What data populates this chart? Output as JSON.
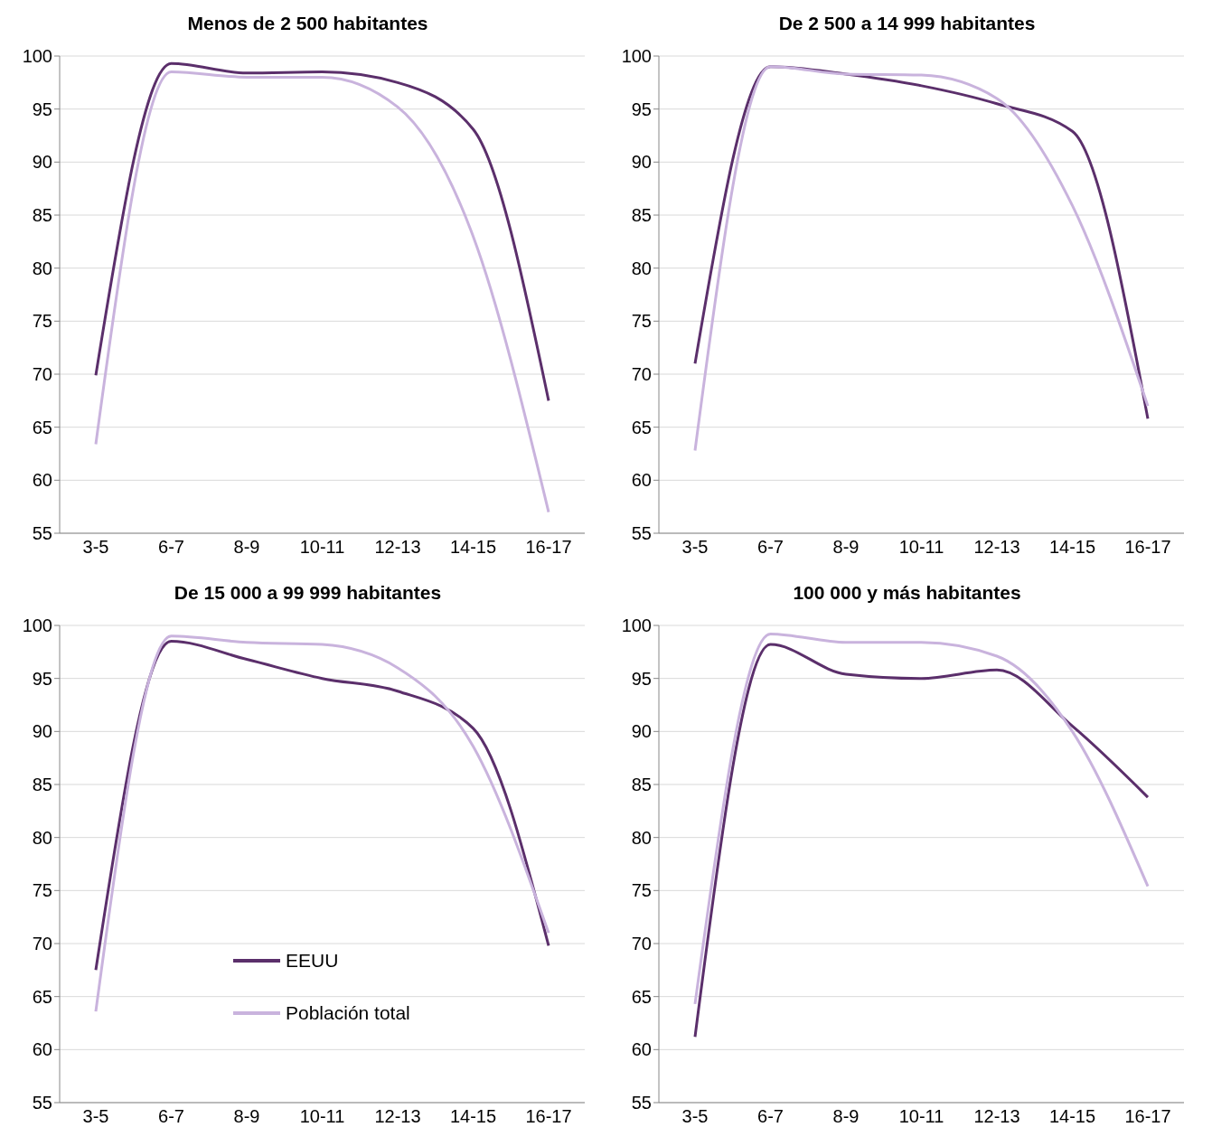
{
  "chart_data": [
    {
      "type": "line",
      "title": "Menos de 2 500 habitantes",
      "categories": [
        "3-5",
        "6-7",
        "8-9",
        "10-11",
        "12-13",
        "14-15",
        "16-17"
      ],
      "ylim": [
        55,
        100
      ],
      "yticks": [
        55,
        60,
        65,
        70,
        75,
        80,
        85,
        90,
        95,
        100
      ],
      "grid": "y",
      "legend": false,
      "marker": "none",
      "line_style": "solid",
      "series": [
        {
          "color": "#5b2f6b",
          "values": [
            69.9,
            99.3,
            98.4,
            98.5,
            97.5,
            93.1,
            67.5
          ]
        },
        {
          "color": "#c9b3dd",
          "values": [
            63.4,
            98.5,
            98.0,
            98.0,
            95.2,
            83.0,
            57.0
          ]
        }
      ]
    },
    {
      "type": "line",
      "title": "De 2 500 a 14 999 habitantes",
      "categories": [
        "3-5",
        "6-7",
        "8-9",
        "10-11",
        "12-13",
        "14-15",
        "16-17"
      ],
      "ylim": [
        55,
        100
      ],
      "yticks": [
        55,
        60,
        65,
        70,
        75,
        80,
        85,
        90,
        95,
        100
      ],
      "grid": "y",
      "legend": false,
      "marker": "none",
      "line_style": "solid",
      "series": [
        {
          "color": "#5b2f6b",
          "values": [
            71.0,
            99.0,
            98.3,
            97.2,
            95.5,
            92.9,
            65.8
          ]
        },
        {
          "color": "#c9b3dd",
          "values": [
            62.8,
            99.0,
            98.3,
            98.2,
            96.0,
            85.9,
            67.0
          ]
        }
      ]
    },
    {
      "type": "line",
      "title": "De 15 000 a 99 999 habitantes",
      "categories": [
        "3-5",
        "6-7",
        "8-9",
        "10-11",
        "12-13",
        "14-15",
        "16-17"
      ],
      "ylim": [
        55,
        100
      ],
      "yticks": [
        55,
        60,
        65,
        70,
        75,
        80,
        85,
        90,
        95,
        100
      ],
      "grid": "y",
      "legend": "bottom left",
      "marker": "none",
      "line_style": "solid",
      "series": [
        {
          "name": "EEUU",
          "color": "#5b2f6b",
          "values": [
            67.5,
            98.5,
            96.8,
            95.0,
            93.8,
            90.3,
            69.8
          ]
        },
        {
          "name": "Población total",
          "color": "#c9b3dd",
          "values": [
            63.6,
            99.0,
            98.4,
            98.2,
            96.0,
            88.6,
            71.0
          ]
        }
      ]
    },
    {
      "type": "line",
      "title": "100 000 y más habitantes",
      "categories": [
        "3-5",
        "6-7",
        "8-9",
        "10-11",
        "12-13",
        "14-15",
        "16-17"
      ],
      "ylim": [
        55,
        100
      ],
      "yticks": [
        55,
        60,
        65,
        70,
        75,
        80,
        85,
        90,
        95,
        100
      ],
      "grid": "y",
      "legend": false,
      "marker": "none",
      "line_style": "solid",
      "series": [
        {
          "color": "#5b2f6b",
          "values": [
            61.2,
            98.2,
            95.4,
            95.0,
            95.8,
            90.5,
            83.8
          ]
        },
        {
          "color": "#c9b3dd",
          "values": [
            64.3,
            99.2,
            98.4,
            98.4,
            97.1,
            90.0,
            75.4
          ]
        }
      ]
    }
  ]
}
